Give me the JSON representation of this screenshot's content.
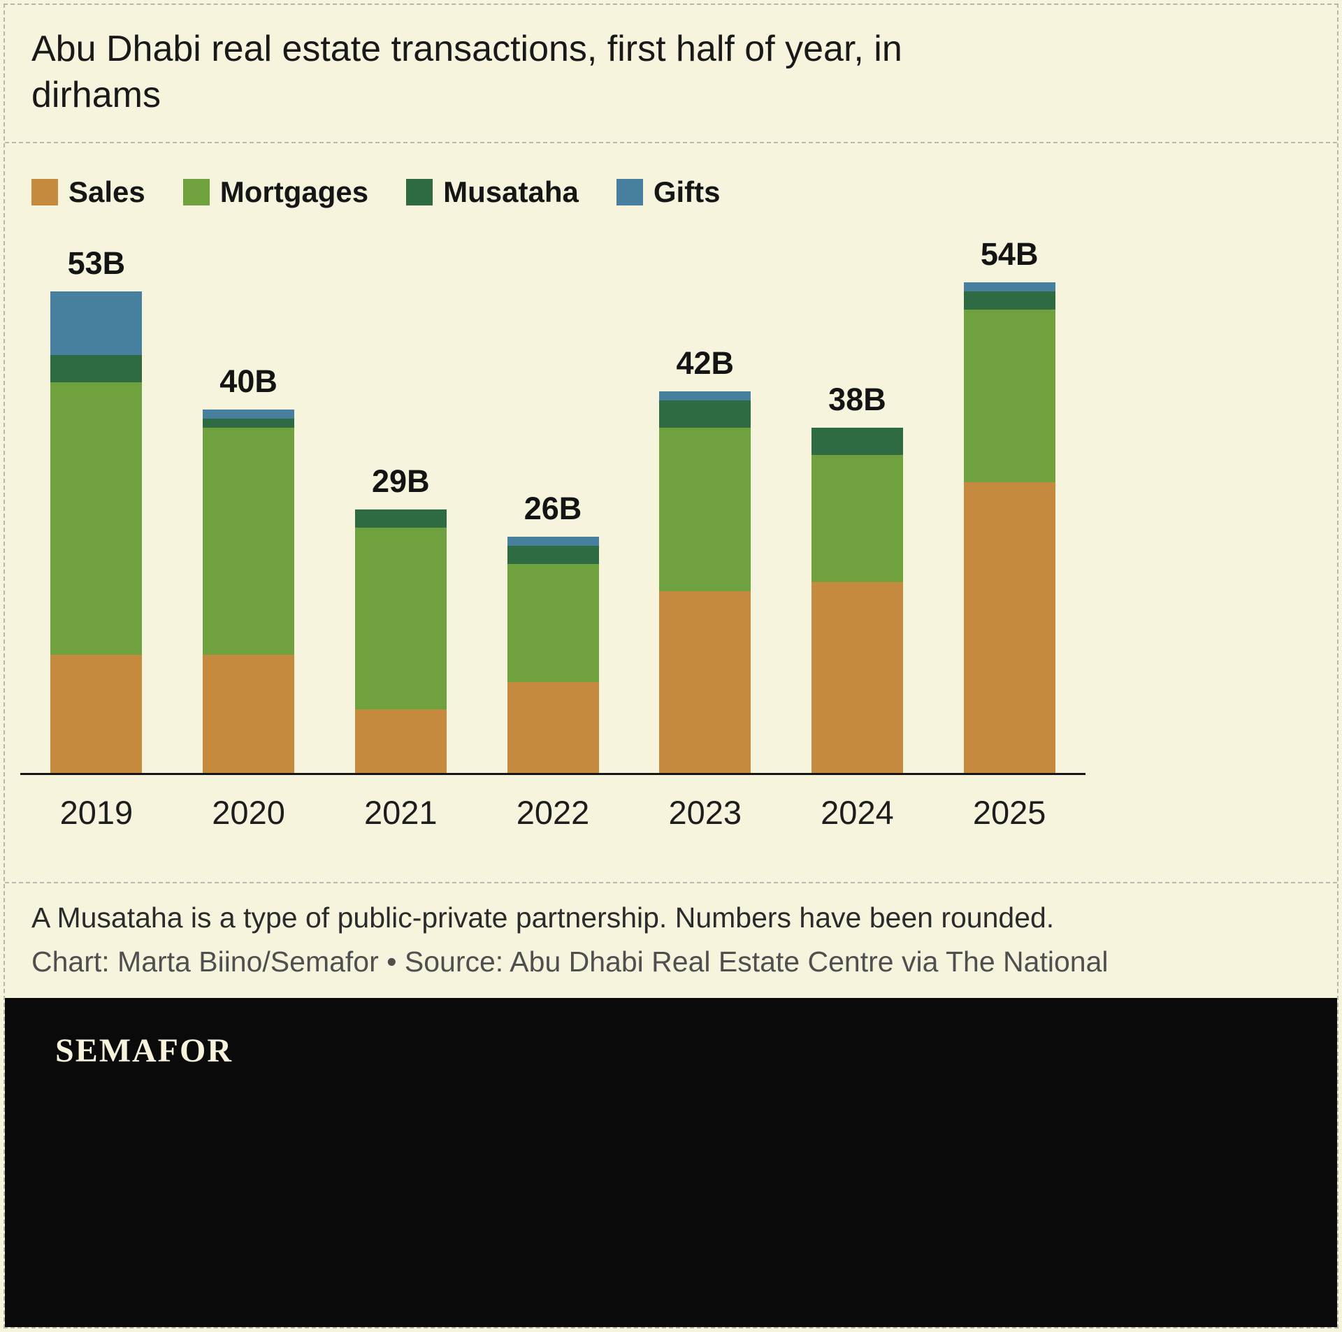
{
  "title": "Abu Dhabi real estate transactions, first half of year, in dirhams",
  "footnote": "A Musataha is a type of public-private partnership. Numbers have been rounded.",
  "credit": "Chart: Marta Biino/Semafor • Source: Abu Dhabi Real Estate Centre via The National",
  "logo": "SEMAFOR",
  "colors": {
    "background": "#f7f4dd",
    "sales": "#c68a3e",
    "mortgages": "#6fa23e",
    "musataha": "#2e6b42",
    "gifts": "#47809e",
    "axis": "#161616",
    "footer_bar": "#0a0a0a"
  },
  "chart_data": {
    "type": "bar",
    "stacked": true,
    "title": "Abu Dhabi real estate transactions, first half of year, in dirhams",
    "values_unit": "billions of dirhams",
    "categories": [
      "2019",
      "2020",
      "2021",
      "2022",
      "2023",
      "2024",
      "2025"
    ],
    "series": [
      {
        "name": "Sales",
        "color": "#c68a3e",
        "values": [
          13,
          13,
          7,
          10,
          20,
          21,
          32
        ]
      },
      {
        "name": "Mortgages",
        "color": "#6fa23e",
        "values": [
          30,
          25,
          20,
          13,
          18,
          14,
          19
        ]
      },
      {
        "name": "Musataha",
        "color": "#2e6b42",
        "values": [
          3,
          1,
          2,
          2,
          3,
          3,
          2
        ]
      },
      {
        "name": "Gifts",
        "color": "#47809e",
        "values": [
          7,
          1,
          0,
          1,
          1,
          0,
          1
        ]
      }
    ],
    "totals": [
      53,
      40,
      29,
      26,
      42,
      38,
      54
    ],
    "totals_labels": [
      "53B",
      "40B",
      "29B",
      "26B",
      "42B",
      "38B",
      "54B"
    ],
    "ylim": [
      0,
      58
    ],
    "grid": false,
    "y_axis_shown": false,
    "legend_position": "top"
  }
}
